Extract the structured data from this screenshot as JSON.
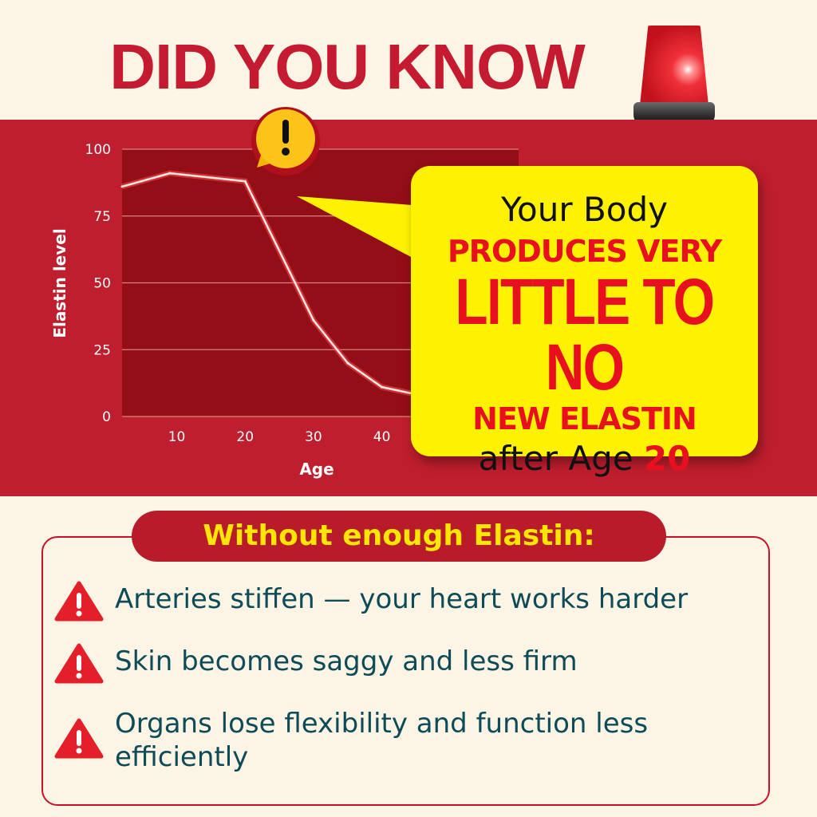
{
  "header": {
    "title": "DID YOU KNOW",
    "siren_icon": "police-siren-icon"
  },
  "colors": {
    "background": "#fcf4e4",
    "band": "#bf1e2e",
    "plot": "#930e16",
    "title": "#c41b30",
    "callout": "#fff200",
    "accent_red": "#e8101e",
    "bullet_text": "#0e4b57"
  },
  "chart_data": {
    "type": "line",
    "xlabel": "Age",
    "ylabel": "Elastin level",
    "x_ticks": [
      10,
      20,
      30,
      40
    ],
    "y_ticks": [
      0,
      25,
      50,
      75,
      100
    ],
    "xlim": [
      2,
      60
    ],
    "ylim": [
      0,
      100
    ],
    "grid": true,
    "x": [
      2,
      9,
      20,
      30,
      35,
      40,
      45.5
    ],
    "y": [
      86,
      91,
      88,
      36,
      20,
      11,
      8
    ]
  },
  "callout": {
    "line1": "Your Body",
    "line2": "PRODUCES VERY",
    "line3": "LITTLE TO NO",
    "line4": "NEW ELASTIN",
    "line5_prefix": "after Age ",
    "line5_number": "20",
    "bubble_icon": "exclamation-icon"
  },
  "consequences": {
    "heading": "Without enough Elastin:",
    "items": [
      {
        "text": "Arteries stiffen — your heart works harder",
        "icon": "warning-triangle-icon"
      },
      {
        "text": "Skin becomes saggy and less firm",
        "icon": "warning-triangle-icon"
      },
      {
        "text": "Organs lose flexibility and function less efficiently",
        "icon": "warning-triangle-icon"
      }
    ]
  }
}
